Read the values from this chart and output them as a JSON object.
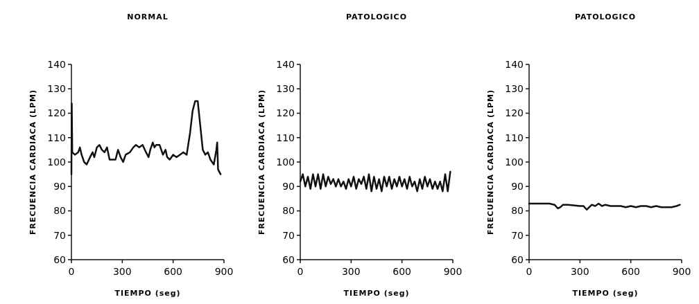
{
  "chart_data": [
    {
      "type": "line",
      "title": "NORMAL",
      "xlabel": "TIEMPO (seg)",
      "ylabel": "FRECUENCIA CARDIACA (LPM)",
      "xlim": [
        0,
        900
      ],
      "xticks": [
        0,
        300,
        600,
        900
      ],
      "ylim": [
        60,
        140
      ],
      "yticks": [
        60,
        70,
        80,
        90,
        100,
        110,
        120,
        130,
        140
      ],
      "x": [
        0,
        2,
        5,
        20,
        40,
        50,
        60,
        75,
        90,
        110,
        125,
        135,
        150,
        165,
        180,
        195,
        210,
        225,
        240,
        260,
        275,
        290,
        305,
        320,
        345,
        365,
        380,
        400,
        420,
        440,
        455,
        465,
        480,
        490,
        500,
        520,
        540,
        555,
        565,
        580,
        600,
        620,
        640,
        660,
        680,
        700,
        715,
        730,
        745,
        760,
        775,
        790,
        805,
        820,
        840,
        855,
        860,
        865,
        880
      ],
      "series": [
        {
          "color": "#111111",
          "values": [
            95,
            124,
            104,
            103,
            104,
            106,
            103,
            100,
            99,
            102,
            104,
            102,
            106,
            107,
            105,
            104,
            106,
            101,
            101,
            101,
            105,
            102,
            100,
            103,
            104,
            106,
            107,
            106,
            107,
            104,
            102,
            105,
            108,
            106,
            107,
            107,
            103,
            105,
            102,
            101,
            103,
            102,
            103,
            104,
            103,
            112,
            121,
            125,
            125,
            115,
            105,
            103,
            104,
            101,
            99,
            105,
            108,
            97,
            95
          ]
        }
      ]
    },
    {
      "type": "line",
      "title": "PATOLOGICO",
      "xlabel": "TIEMPO (seg)",
      "ylabel": "FRECUENCIA CARDIACA (LPM)",
      "xlim": [
        0,
        900
      ],
      "xticks": [
        0,
        300,
        600,
        900
      ],
      "ylim": [
        60,
        140
      ],
      "yticks": [
        60,
        70,
        80,
        90,
        100,
        110,
        120,
        130,
        140
      ],
      "x": [
        0,
        15,
        30,
        45,
        60,
        75,
        90,
        105,
        120,
        135,
        150,
        165,
        180,
        195,
        210,
        225,
        240,
        255,
        270,
        285,
        300,
        315,
        330,
        345,
        360,
        375,
        390,
        405,
        420,
        435,
        450,
        465,
        480,
        495,
        510,
        525,
        540,
        555,
        570,
        585,
        600,
        615,
        630,
        645,
        660,
        675,
        690,
        705,
        720,
        735,
        750,
        765,
        780,
        795,
        810,
        825,
        840,
        855,
        870,
        885
      ],
      "series": [
        {
          "color": "#111111",
          "values": [
            92,
            95,
            90,
            94,
            89,
            95,
            90,
            95,
            89,
            95,
            90,
            94,
            91,
            93,
            90,
            93,
            90,
            92,
            89,
            93,
            90,
            94,
            89,
            93,
            91,
            94,
            89,
            95,
            88,
            94,
            89,
            93,
            88,
            94,
            90,
            94,
            89,
            93,
            90,
            94,
            90,
            93,
            89,
            94,
            90,
            92,
            88,
            93,
            89,
            94,
            90,
            93,
            89,
            92,
            89,
            92,
            88,
            95,
            88,
            96
          ]
        }
      ]
    },
    {
      "type": "line",
      "title": "PATOLOGICO",
      "xlabel": "TIEMPO (seg)",
      "ylabel": "FRECUENCIA CARDIACA (LPM)",
      "xlim": [
        0,
        900
      ],
      "xticks": [
        0,
        300,
        600,
        900
      ],
      "ylim": [
        60,
        140
      ],
      "yticks": [
        60,
        70,
        80,
        90,
        100,
        110,
        120,
        130,
        140
      ],
      "x": [
        0,
        60,
        120,
        150,
        170,
        185,
        200,
        230,
        300,
        320,
        340,
        355,
        370,
        390,
        410,
        430,
        450,
        480,
        510,
        540,
        570,
        600,
        630,
        660,
        690,
        720,
        750,
        780,
        810,
        840,
        870,
        890
      ],
      "series": [
        {
          "color": "#111111",
          "values": [
            83,
            83,
            83,
            82.5,
            81,
            81.5,
            82.5,
            82.5,
            82,
            82,
            80.5,
            81.5,
            82.5,
            82,
            83,
            82,
            82.5,
            82,
            82,
            82,
            81.5,
            82,
            81.5,
            82,
            82,
            81.5,
            82,
            81.5,
            81.5,
            81.5,
            82,
            82.5
          ]
        }
      ]
    }
  ]
}
